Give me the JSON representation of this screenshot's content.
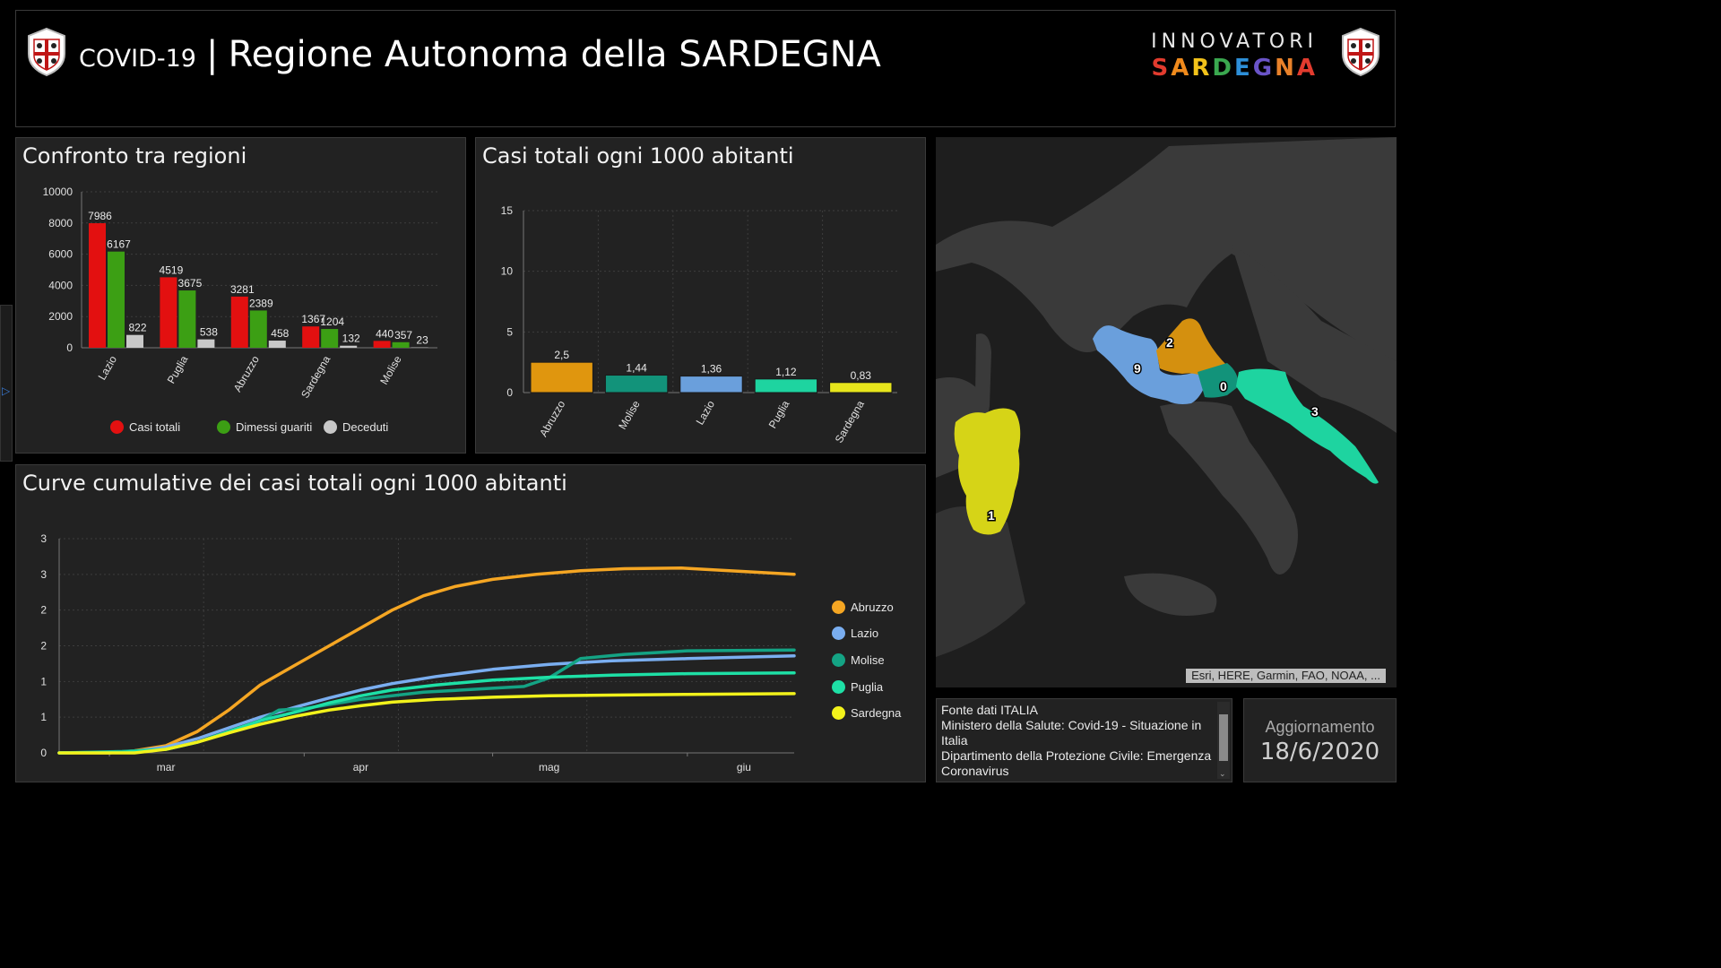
{
  "header": {
    "title_small": "COVID-19",
    "separator": "|",
    "title_big": "Regione Autonoma della SARDEGNA",
    "brand_line1": "INNOVATORI",
    "brand_line2": "SARDEGNA"
  },
  "panels": {
    "compare_title": "Confronto tra regioni",
    "per1000_title": "Casi totali ogni 1000 abitanti",
    "cumulative_title": "Curve cumulative dei casi totali ogni 1000 abitanti"
  },
  "chart_data": [
    {
      "id": "confronto",
      "type": "bar",
      "title": "Confronto tra regioni",
      "categories": [
        "Lazio",
        "Puglia",
        "Abruzzo",
        "Sardegna",
        "Molise"
      ],
      "series": [
        {
          "name": "Casi totali",
          "color": "#e31010",
          "values": [
            7986,
            4519,
            3281,
            1367,
            440
          ]
        },
        {
          "name": "Dimessi guariti",
          "color": "#3c9f14",
          "values": [
            6167,
            3675,
            2389,
            1204,
            357
          ]
        },
        {
          "name": "Deceduti",
          "color": "#c8c8c8",
          "values": [
            822,
            538,
            458,
            132,
            23
          ]
        }
      ],
      "ylim": [
        0,
        10000
      ],
      "yticks": [
        "0",
        "2000",
        "4000",
        "6000",
        "8000",
        "10000"
      ],
      "legend": "bottom",
      "grid": true
    },
    {
      "id": "per1000",
      "type": "bar",
      "title": "Casi totali ogni 1000 abitanti",
      "categories": [
        "Abruzzo",
        "Molise",
        "Lazio",
        "Puglia",
        "Sardegna"
      ],
      "values": [
        2.5,
        1.44,
        1.36,
        1.12,
        0.83
      ],
      "value_labels": [
        "2,5",
        "1,44",
        "1,36",
        "1,12",
        "0,83"
      ],
      "colors": [
        "#e0960e",
        "#12937a",
        "#6a9fdc",
        "#1ed4a0",
        "#e7e51c"
      ],
      "ylim": [
        0,
        15
      ],
      "yticks": [
        "0",
        "5",
        "10",
        "15"
      ],
      "grid": true
    },
    {
      "id": "cumulative",
      "type": "line",
      "title": "Curve cumulative dei casi totali ogni 1000 abitanti",
      "x_labels": [
        "mar",
        "apr",
        "mag",
        "giu"
      ],
      "x_range": [
        "2020-02-22",
        "2020-06-18"
      ],
      "yticks": [
        "0",
        "1",
        "1",
        "2",
        "2",
        "3",
        "3"
      ],
      "ylim": [
        0,
        3
      ],
      "series": [
        {
          "name": "Abruzzo",
          "color": "#f5a623",
          "points": [
            [
              "2020-02-22",
              0
            ],
            [
              "2020-03-01",
              0
            ],
            [
              "2020-03-05",
              0.03
            ],
            [
              "2020-03-10",
              0.1
            ],
            [
              "2020-03-15",
              0.3
            ],
            [
              "2020-03-20",
              0.6
            ],
            [
              "2020-03-25",
              0.95
            ],
            [
              "2020-03-31",
              1.25
            ],
            [
              "2020-04-05",
              1.5
            ],
            [
              "2020-04-10",
              1.75
            ],
            [
              "2020-04-15",
              2.0
            ],
            [
              "2020-04-20",
              2.2
            ],
            [
              "2020-04-25",
              2.33
            ],
            [
              "2020-05-01",
              2.43
            ],
            [
              "2020-05-08",
              2.5
            ],
            [
              "2020-05-15",
              2.55
            ],
            [
              "2020-05-22",
              2.58
            ],
            [
              "2020-05-31",
              2.59
            ],
            [
              "2020-06-18",
              2.5
            ]
          ]
        },
        {
          "name": "Lazio",
          "color": "#7aaef0",
          "points": [
            [
              "2020-02-22",
              0
            ],
            [
              "2020-03-01",
              0.01
            ],
            [
              "2020-03-05",
              0.02
            ],
            [
              "2020-03-10",
              0.08
            ],
            [
              "2020-03-15",
              0.2
            ],
            [
              "2020-03-20",
              0.35
            ],
            [
              "2020-03-25",
              0.5
            ],
            [
              "2020-03-31",
              0.65
            ],
            [
              "2020-04-05",
              0.77
            ],
            [
              "2020-04-10",
              0.88
            ],
            [
              "2020-04-15",
              0.97
            ],
            [
              "2020-04-22",
              1.07
            ],
            [
              "2020-05-01",
              1.17
            ],
            [
              "2020-05-10",
              1.24
            ],
            [
              "2020-05-20",
              1.29
            ],
            [
              "2020-06-01",
              1.32
            ],
            [
              "2020-06-18",
              1.36
            ]
          ]
        },
        {
          "name": "Molise",
          "color": "#14a384",
          "points": [
            [
              "2020-02-22",
              0
            ],
            [
              "2020-03-03",
              0.02
            ],
            [
              "2020-03-10",
              0.05
            ],
            [
              "2020-03-15",
              0.15
            ],
            [
              "2020-03-20",
              0.3
            ],
            [
              "2020-03-25",
              0.45
            ],
            [
              "2020-03-28",
              0.6
            ],
            [
              "2020-04-01",
              0.62
            ],
            [
              "2020-04-10",
              0.75
            ],
            [
              "2020-04-20",
              0.85
            ],
            [
              "2020-04-30",
              0.9
            ],
            [
              "2020-05-06",
              0.93
            ],
            [
              "2020-05-10",
              1.05
            ],
            [
              "2020-05-15",
              1.32
            ],
            [
              "2020-05-22",
              1.38
            ],
            [
              "2020-06-01",
              1.43
            ],
            [
              "2020-06-18",
              1.44
            ]
          ]
        },
        {
          "name": "Puglia",
          "color": "#1ee0a6",
          "points": [
            [
              "2020-02-22",
              0
            ],
            [
              "2020-03-03",
              0.01
            ],
            [
              "2020-03-10",
              0.05
            ],
            [
              "2020-03-15",
              0.15
            ],
            [
              "2020-03-20",
              0.3
            ],
            [
              "2020-03-25",
              0.45
            ],
            [
              "2020-03-31",
              0.58
            ],
            [
              "2020-04-05",
              0.7
            ],
            [
              "2020-04-10",
              0.8
            ],
            [
              "2020-04-15",
              0.88
            ],
            [
              "2020-04-22",
              0.95
            ],
            [
              "2020-05-01",
              1.02
            ],
            [
              "2020-05-10",
              1.06
            ],
            [
              "2020-05-20",
              1.09
            ],
            [
              "2020-06-01",
              1.11
            ],
            [
              "2020-06-18",
              1.12
            ]
          ]
        },
        {
          "name": "Sardegna",
          "color": "#f2f21b",
          "points": [
            [
              "2020-02-22",
              0
            ],
            [
              "2020-03-05",
              0.0
            ],
            [
              "2020-03-10",
              0.05
            ],
            [
              "2020-03-15",
              0.15
            ],
            [
              "2020-03-20",
              0.28
            ],
            [
              "2020-03-25",
              0.4
            ],
            [
              "2020-03-31",
              0.52
            ],
            [
              "2020-04-05",
              0.6
            ],
            [
              "2020-04-10",
              0.66
            ],
            [
              "2020-04-15",
              0.71
            ],
            [
              "2020-04-22",
              0.75
            ],
            [
              "2020-05-01",
              0.78
            ],
            [
              "2020-05-10",
              0.8
            ],
            [
              "2020-05-20",
              0.81
            ],
            [
              "2020-06-01",
              0.82
            ],
            [
              "2020-06-18",
              0.83
            ]
          ]
        }
      ],
      "legend": "right",
      "grid": true
    }
  ],
  "map": {
    "labels": {
      "lazio": "9",
      "abruzzo": "2",
      "molise": "0",
      "puglia": "3",
      "sardegna": "1"
    },
    "colors": {
      "lazio": "#6a9fdc",
      "abruzzo": "#d4900f",
      "molise": "#12937a",
      "puglia": "#1ed4a0",
      "sardegna": "#d6d417"
    },
    "attribution": "Esri, HERE, Garmin, FAO, NOAA, ..."
  },
  "source": {
    "line1": "Fonte dati ITALIA",
    "line2": "Ministero della Salute: Covid-19 - Situazione in Italia",
    "line3": "Dipartimento della Protezione Civile: Emergenza Coronavirus"
  },
  "update": {
    "label": "Aggiornamento",
    "date": "18/6/2020"
  }
}
